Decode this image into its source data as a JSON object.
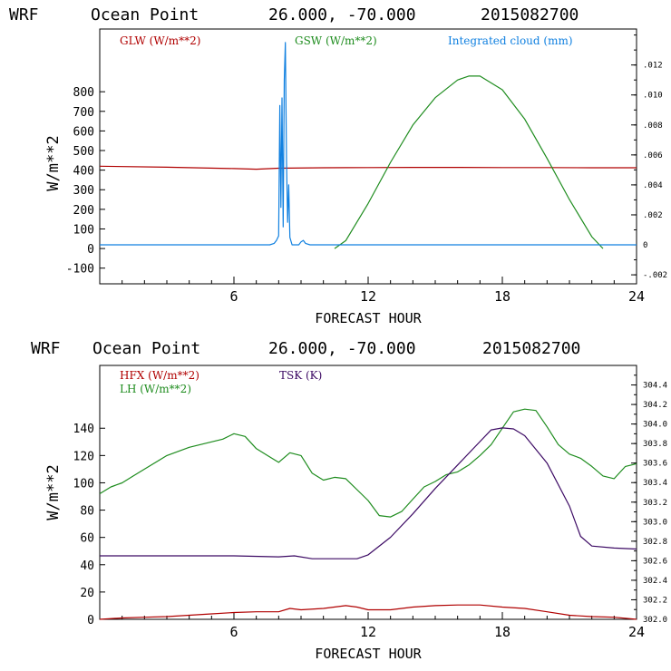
{
  "chart_data": [
    {
      "type": "line",
      "header": {
        "model": "WRF",
        "location": "Ocean Point",
        "coords": "26.000, -70.000",
        "date": "2015082700"
      },
      "xlabel": "FORECAST HOUR",
      "ylabel": "W/m**2",
      "xlim": [
        0,
        24
      ],
      "ylim": [
        -180,
        1120
      ],
      "x_ticks": [
        "6",
        "12",
        "18",
        "24"
      ],
      "y_ticks": [
        "-100",
        "0",
        "100",
        "200",
        "300",
        "400",
        "500",
        "600",
        "700",
        "800"
      ],
      "y2lim": [
        -0.0026,
        0.0144
      ],
      "y2_ticks": [
        "-.002",
        "0",
        ".002",
        ".004",
        ".006",
        ".008",
        ".010",
        ".012"
      ],
      "legend": [
        {
          "label": "GLW (W/m**2)",
          "color": "#b00000"
        },
        {
          "label": "GSW (W/m**2)",
          "color": "#1e8c1e"
        },
        {
          "label": "Integrated cloud (mm)",
          "color": "#1080e0"
        }
      ],
      "series": [
        {
          "name": "GLW (W/m**2)",
          "color": "#b00000",
          "axis": "left",
          "x": [
            0,
            3,
            6,
            7,
            8,
            10,
            12,
            14,
            16,
            18,
            20,
            22,
            24
          ],
          "y": [
            420,
            415,
            408,
            405,
            410,
            412,
            413,
            414,
            414,
            413,
            413,
            412,
            412
          ]
        },
        {
          "name": "GSW (W/m**2)",
          "color": "#1e8c1e",
          "axis": "left",
          "x": [
            10.5,
            11,
            12,
            13,
            14,
            15,
            16,
            16.5,
            17,
            18,
            19,
            20,
            21,
            22,
            22.5
          ],
          "y": [
            0,
            40,
            230,
            440,
            630,
            770,
            860,
            880,
            880,
            810,
            660,
            460,
            250,
            60,
            0
          ]
        },
        {
          "name": "Integrated cloud (mm)",
          "color": "#1080e0",
          "axis": "right",
          "x": [
            0,
            7.6,
            7.8,
            7.9,
            8.0,
            8.05,
            8.1,
            8.15,
            8.2,
            8.25,
            8.3,
            8.35,
            8.4,
            8.45,
            8.5,
            8.6,
            8.7,
            8.8,
            8.9,
            9.0,
            9.1,
            9.2,
            9.4,
            24
          ],
          "y": [
            0,
            0,
            0.0001,
            0.0003,
            0.0006,
            0.0093,
            0.0025,
            0.0098,
            0.0012,
            0.011,
            0.0135,
            0.0055,
            0.0015,
            0.004,
            0.0005,
            0,
            0,
            0,
            0,
            0.0002,
            0.0003,
            0.0001,
            0,
            0
          ]
        }
      ]
    },
    {
      "type": "line",
      "header": {
        "model": "WRF",
        "location": "Ocean Point",
        "coords": "26.000, -70.000",
        "date": "2015082700"
      },
      "xlabel": "FORECAST HOUR",
      "ylabel": "W/m**2",
      "xlim": [
        0,
        24
      ],
      "ylim": [
        0,
        186
      ],
      "x_ticks": [
        "6",
        "12",
        "18",
        "24"
      ],
      "y_ticks": [
        "0",
        "20",
        "40",
        "60",
        "80",
        "100",
        "120",
        "140"
      ],
      "y2lim": [
        302.0,
        304.6
      ],
      "y2_ticks": [
        "302.0",
        "302.2",
        "302.4",
        "302.6",
        "302.8",
        "303.0",
        "303.2",
        "303.4",
        "303.6",
        "303.8",
        "304.0",
        "304.2",
        "304.4"
      ],
      "legend": [
        {
          "label": "HFX (W/m**2)",
          "color": "#b00000"
        },
        {
          "label": "LH  (W/m**2)",
          "color": "#1e8c1e"
        },
        {
          "label": "TSK (K)",
          "color": "#3c0a64"
        }
      ],
      "series": [
        {
          "name": "HFX (W/m**2)",
          "color": "#b00000",
          "axis": "left",
          "x": [
            0,
            1,
            2,
            3,
            4,
            5,
            6,
            7,
            8,
            8.5,
            9,
            10,
            11,
            11.5,
            12,
            13,
            14,
            15,
            16,
            17,
            18,
            19,
            20,
            21,
            22,
            23,
            24
          ],
          "y": [
            0,
            1,
            1.5,
            2,
            3,
            4,
            5,
            5.5,
            5.5,
            8,
            7,
            8,
            10,
            9,
            7,
            7,
            9,
            10,
            10.5,
            10.5,
            9,
            8,
            5.5,
            3,
            2,
            1.5,
            0
          ]
        },
        {
          "name": "LH  (W/m**2)",
          "color": "#1e8c1e",
          "axis": "left",
          "x": [
            0,
            0.5,
            1,
            1.5,
            2,
            3,
            4,
            5,
            5.5,
            6,
            6.5,
            7,
            7.5,
            8,
            8.5,
            9,
            9.5,
            10,
            10.5,
            11,
            11.5,
            12,
            12.5,
            13,
            13.5,
            14,
            14.5,
            15,
            15.5,
            16,
            16.5,
            17,
            17.5,
            18,
            18.5,
            19,
            19.5,
            20,
            20.5,
            21,
            21.5,
            22,
            22.5,
            23,
            23.5,
            24
          ],
          "y": [
            92,
            97,
            100,
            105,
            110,
            120,
            126,
            130,
            132,
            136,
            134,
            125,
            120,
            115,
            122,
            120,
            107,
            102,
            104,
            103,
            95,
            87,
            76,
            75,
            79,
            88,
            97,
            101,
            106,
            108,
            113,
            120,
            128,
            140,
            152,
            154,
            153,
            141,
            128,
            121,
            118,
            112,
            105,
            103,
            112,
            114
          ]
        },
        {
          "name": "TSK (K)",
          "color": "#3c0a64",
          "axis": "right",
          "x": [
            0,
            2,
            4,
            6,
            8,
            8.7,
            9.5,
            10.5,
            11.5,
            12,
            13,
            14,
            15,
            16,
            17,
            17.5,
            18,
            18.5,
            19,
            20,
            21,
            21.5,
            22,
            23,
            24
          ],
          "y": [
            302.65,
            302.65,
            302.65,
            302.65,
            302.64,
            302.65,
            302.62,
            302.62,
            302.62,
            302.66,
            302.84,
            303.08,
            303.34,
            303.58,
            303.82,
            303.94,
            303.96,
            303.95,
            303.88,
            303.6,
            303.16,
            302.85,
            302.75,
            302.73,
            302.72
          ]
        }
      ]
    }
  ]
}
